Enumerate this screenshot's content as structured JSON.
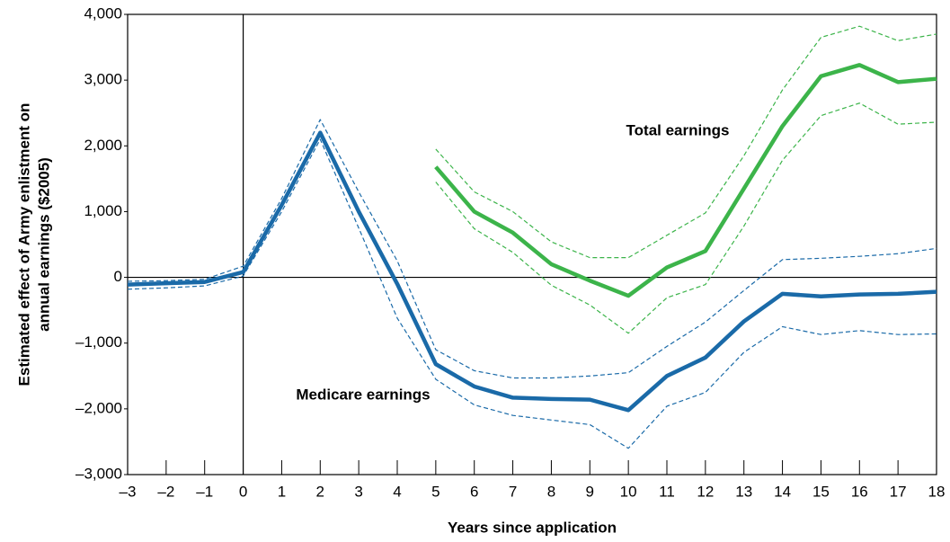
{
  "chart_data": {
    "type": "line",
    "ylabel": [
      "Estimated effect of Army enlistment on",
      "annual earnings ($2005)"
    ],
    "xlabel": "Years since application",
    "x": [
      -3,
      -2,
      -1,
      0,
      1,
      2,
      3,
      4,
      5,
      6,
      7,
      8,
      9,
      10,
      11,
      12,
      13,
      14,
      15,
      16,
      17,
      18
    ],
    "series": [
      {
        "name": "Medicare earnings",
        "color": "#1a6aa8",
        "style": "solid",
        "values": [
          -110,
          -90,
          -70,
          80,
          1100,
          2200,
          1000,
          -100,
          -1320,
          -1660,
          -1830,
          -1850,
          -1860,
          -2020,
          -1500,
          -1220,
          -670,
          -250,
          -290,
          -260,
          -250,
          -220
        ]
      },
      {
        "color": "#1a6aa8",
        "style": "dashed",
        "values": [
          -60,
          -50,
          -30,
          170,
          1200,
          2400,
          1300,
          250,
          -1100,
          -1420,
          -1530,
          -1530,
          -1500,
          -1450,
          -1050,
          -680,
          -200,
          270,
          290,
          320,
          360,
          440
        ]
      },
      {
        "color": "#1a6aa8",
        "style": "dashed",
        "values": [
          -180,
          -160,
          -130,
          20,
          1000,
          2100,
          750,
          -620,
          -1550,
          -1940,
          -2100,
          -2170,
          -2240,
          -2600,
          -1960,
          -1750,
          -1140,
          -750,
          -870,
          -810,
          -870,
          -860
        ]
      },
      {
        "name": "Total earnings",
        "color": "#3cb44a",
        "style": "solid",
        "values": [
          null,
          null,
          null,
          null,
          null,
          null,
          null,
          null,
          1680,
          1000,
          680,
          200,
          -50,
          -280,
          150,
          400,
          1350,
          2300,
          3060,
          3230,
          2970,
          3020
        ]
      },
      {
        "color": "#3cb44a",
        "style": "dashed",
        "values": [
          null,
          null,
          null,
          null,
          null,
          null,
          null,
          null,
          1950,
          1300,
          1000,
          540,
          300,
          300,
          640,
          980,
          1850,
          2850,
          3650,
          3820,
          3600,
          3700
        ]
      },
      {
        "color": "#3cb44a",
        "style": "dashed",
        "values": [
          null,
          null,
          null,
          null,
          null,
          null,
          null,
          null,
          1450,
          740,
          380,
          -120,
          -420,
          -850,
          -310,
          -110,
          780,
          1780,
          2460,
          2650,
          2330,
          2360
        ]
      }
    ],
    "xlim": [
      -3,
      18
    ],
    "xticks": [
      {
        "value": -3,
        "label": "–3"
      },
      {
        "value": -2,
        "label": "–2"
      },
      {
        "value": -1,
        "label": "–1"
      },
      0,
      1,
      2,
      3,
      4,
      5,
      6,
      7,
      8,
      9,
      10,
      11,
      12,
      13,
      14,
      15,
      16,
      17,
      18
    ],
    "ylim": [
      -3000,
      4000
    ],
    "yticks": [
      {
        "value": -3000,
        "label": "–3,000"
      },
      {
        "value": -2000,
        "label": "–2,000"
      },
      {
        "value": -1000,
        "label": "–1,000"
      },
      0,
      {
        "value": 1000,
        "label": "1,000"
      },
      {
        "value": 2000,
        "label": "2,000"
      },
      {
        "value": 3000,
        "label": "3,000"
      },
      {
        "value": 4000,
        "label": "4,000"
      }
    ]
  }
}
